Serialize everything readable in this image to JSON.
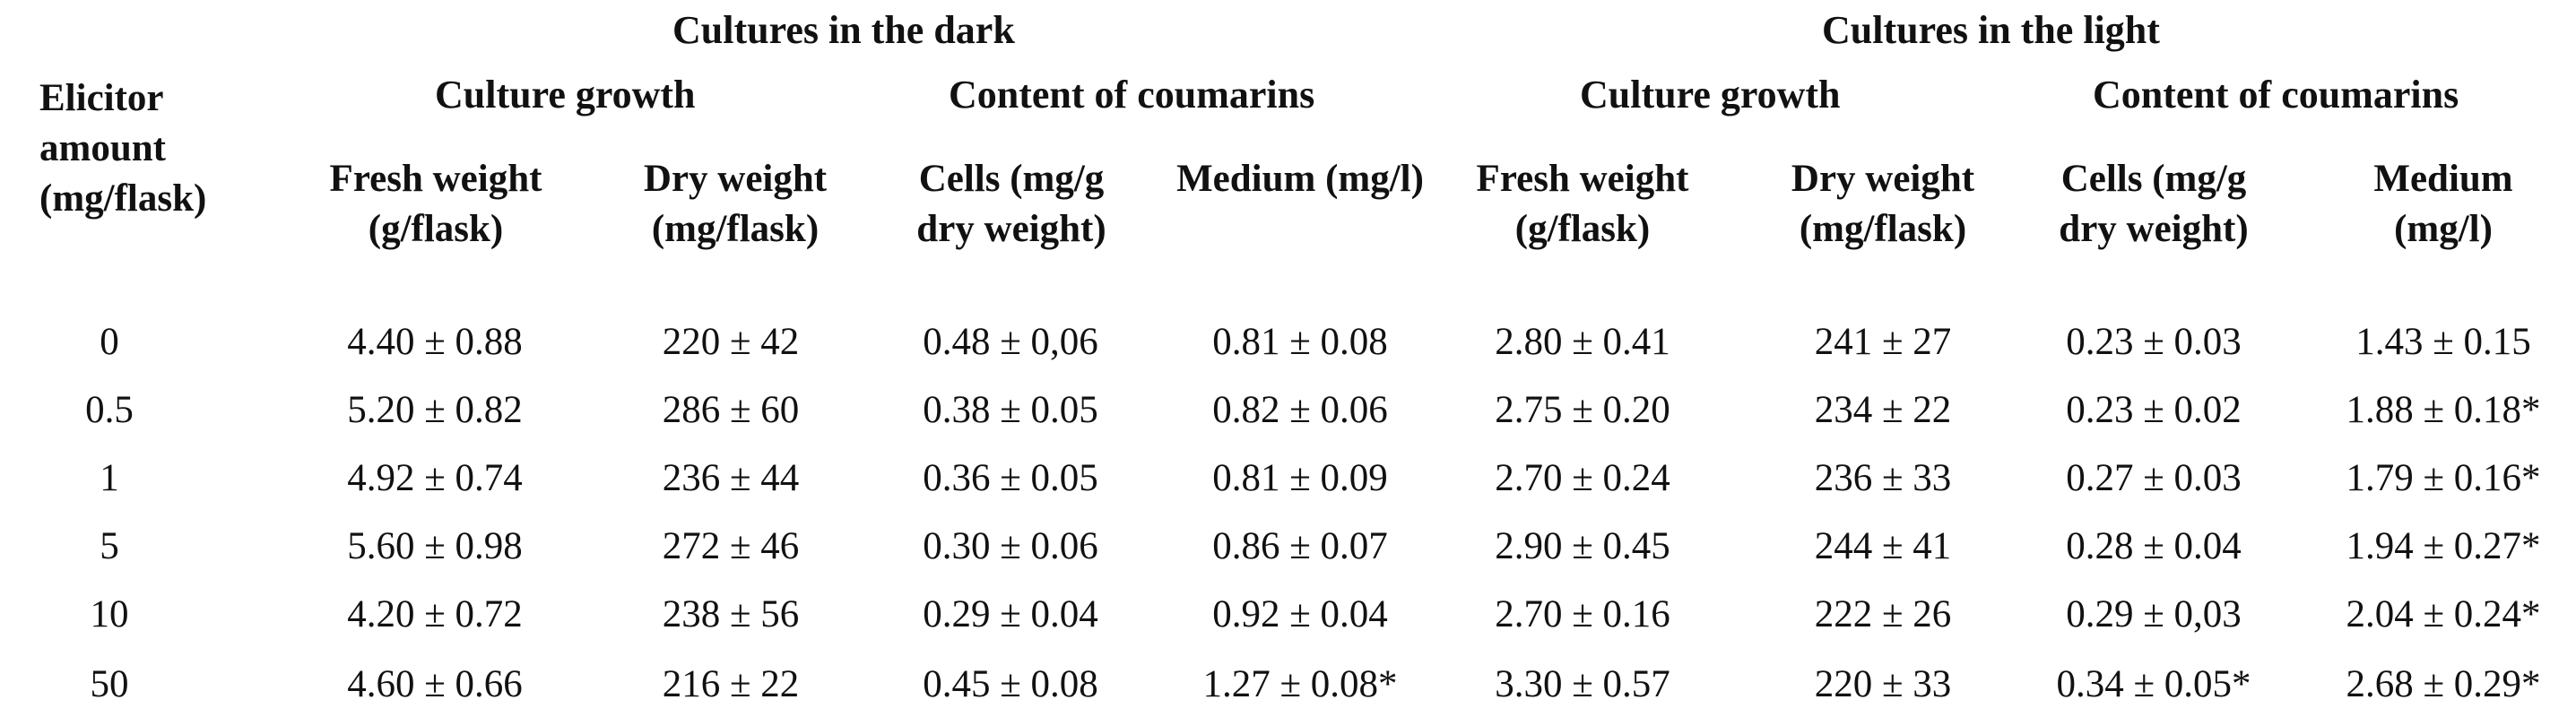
{
  "header": {
    "dark": "Cultures in the dark",
    "light": "Cultures in the light",
    "dark_growth": "Culture growth",
    "dark_coumarins": "Content of coumarins",
    "light_growth": "Culture growth",
    "light_coumarins": "Content of coumarins",
    "elicitor": {
      "line1": "Elicitor",
      "line2": "amount",
      "line3": "(mg/flask)"
    }
  },
  "columns": [
    {
      "line1": "Fresh weight",
      "line2": "(g/flask)"
    },
    {
      "line1": "Dry weight",
      "line2": "(mg/flask)"
    },
    {
      "line1": "Cells (mg/g",
      "line2": "dry weight)"
    },
    {
      "line1": "Medium (mg/l)",
      "line2": ""
    },
    {
      "line1": "Fresh weight",
      "line2": "(g/flask)"
    },
    {
      "line1": "Dry weight",
      "line2": "(mg/flask)"
    },
    {
      "line1": "Cells (mg/g",
      "line2": "dry weight)"
    },
    {
      "line1": "Medium",
      "line2": "(mg/l)"
    }
  ],
  "rows": [
    {
      "amount": "0",
      "cells": [
        "4.40 ± 0.88",
        "220 ± 42",
        "0.48 ± 0,06",
        "0.81 ± 0.08",
        "2.80 ± 0.41",
        "241 ± 27",
        "0.23 ± 0.03",
        "1.43 ± 0.15"
      ]
    },
    {
      "amount": "0.5",
      "cells": [
        "5.20 ± 0.82",
        "286 ± 60",
        "0.38 ± 0.05",
        "0.82 ± 0.06",
        "2.75 ± 0.20",
        "234 ± 22",
        "0.23 ± 0.02",
        "1.88 ± 0.18*"
      ]
    },
    {
      "amount": "1",
      "cells": [
        "4.92 ± 0.74",
        "236 ± 44",
        "0.36 ± 0.05",
        "0.81 ± 0.09",
        "2.70 ± 0.24",
        "236 ± 33",
        "0.27 ± 0.03",
        "1.79 ± 0.16*"
      ]
    },
    {
      "amount": "5",
      "cells": [
        "5.60 ± 0.98",
        "272 ± 46",
        "0.30 ± 0.06",
        "0.86 ± 0.07",
        "2.90 ± 0.45",
        "244 ± 41",
        "0.28 ± 0.04",
        "1.94 ± 0.27*"
      ]
    },
    {
      "amount": "10",
      "cells": [
        "4.20 ± 0.72",
        "238 ± 56",
        "0.29 ± 0.04",
        "0.92 ± 0.04",
        "2.70 ± 0.16",
        "222 ± 26",
        "0.29 ± 0,03",
        "2.04 ± 0.24*"
      ]
    },
    {
      "amount": "50",
      "cells": [
        "4.60 ± 0.66",
        "216 ± 22",
        "0.45 ± 0.08",
        "1.27 ± 0.08*",
        "3.30 ± 0.57",
        "220 ± 33",
        "0.34 ± 0.05*",
        "2.68 ± 0.29*"
      ]
    }
  ]
}
